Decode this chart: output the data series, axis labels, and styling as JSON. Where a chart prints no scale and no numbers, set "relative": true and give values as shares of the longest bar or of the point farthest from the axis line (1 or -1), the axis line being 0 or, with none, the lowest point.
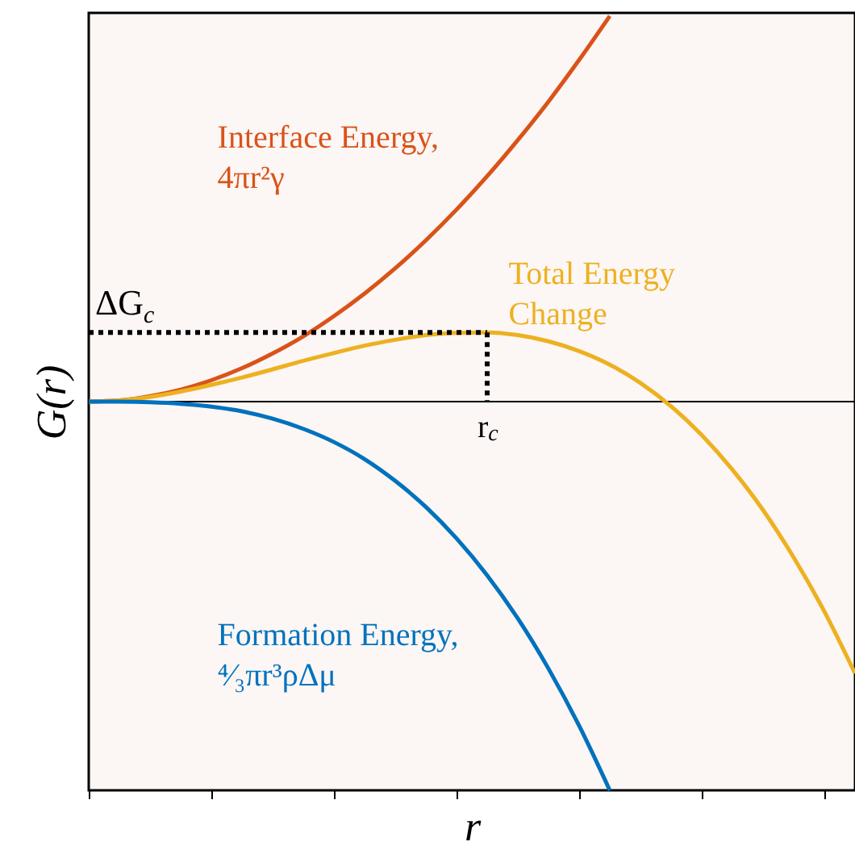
{
  "chart_data": {
    "type": "line",
    "relative": true,
    "xlabel": "r",
    "ylabel": "G(r)",
    "categories": [
      null,
      null,
      null,
      null,
      null,
      null,
      null,
      null,
      null,
      null,
      null,
      null,
      null,
      null,
      null,
      null,
      null,
      null,
      null,
      null,
      null,
      null,
      null,
      null,
      null,
      null
    ],
    "series": [
      {
        "name": "Interface Energy,\n4πr²γ",
        "color": "#d95319",
        "values": [
          0,
          0.003,
          0.014,
          0.031,
          0.055,
          0.086,
          0.124,
          0.168,
          0.22,
          0.278,
          0.343,
          0.415,
          0.494,
          0.58,
          0.673,
          0.772,
          0.879,
          0.992,
          null,
          null,
          null,
          null,
          null,
          null,
          null,
          null
        ]
      },
      {
        "name": "Total Energy\nChange",
        "color": "#edb120",
        "values": [
          0,
          0.003,
          0.012,
          0.026,
          0.043,
          0.062,
          0.083,
          0.105,
          0.125,
          0.144,
          0.159,
          0.171,
          0.177,
          0.178,
          0.171,
          0.155,
          0.13,
          0.095,
          0.048,
          -0.012,
          -0.086,
          -0.175,
          -0.279,
          -0.401,
          -0.54,
          -0.699
        ]
      },
      {
        "name": "Formation Energy,\n⁴⁄₃πr³ρΔμ",
        "color": "#0072bd",
        "values": [
          0,
          -0.0002,
          -0.0016,
          -0.0055,
          -0.013,
          -0.025,
          -0.044,
          -0.07,
          -0.104,
          -0.148,
          -0.204,
          -0.271,
          -0.352,
          -0.447,
          -0.558,
          -0.687,
          -0.834,
          -1,
          null,
          null,
          null,
          null,
          null,
          null,
          null,
          null
        ]
      }
    ],
    "ref_lines": [
      {
        "axis": "y",
        "value": 0.178,
        "label": "ΔG$_{c}$",
        "line_style": "dotted",
        "color": "#000000"
      }
    ],
    "annotations": [
      "r$_{c}$"
    ]
  }
}
